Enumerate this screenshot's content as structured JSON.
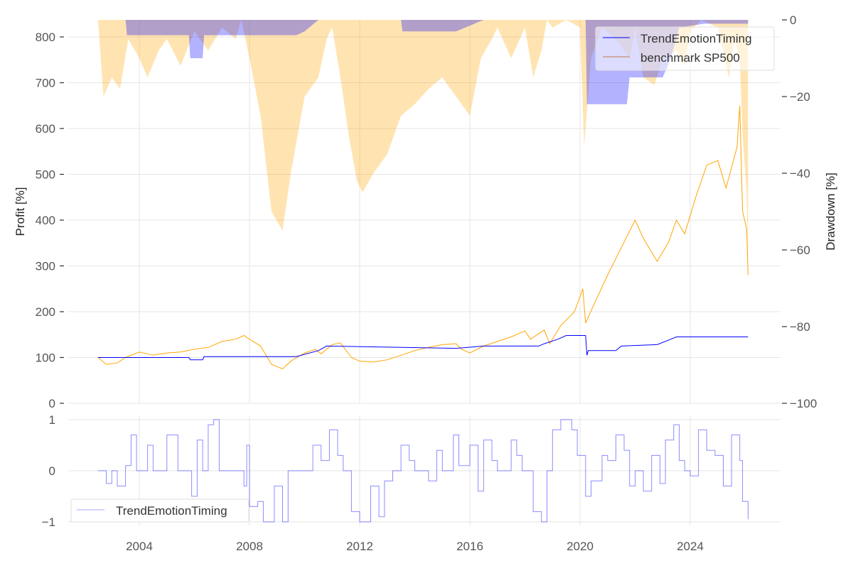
{
  "chart_data": [
    {
      "type": "line",
      "panel": "equity",
      "xlabel": "",
      "ylabel": "Profit [%]",
      "ylabel_right": "Drawdown [%]",
      "ylim": [
        0,
        835
      ],
      "ylim_right": [
        -100,
        0
      ],
      "yticks": [
        "0",
        "100",
        "200",
        "300",
        "400",
        "500",
        "600",
        "700",
        "800"
      ],
      "yticks_right": [
        "0",
        "−20",
        "−40",
        "−60",
        "−80",
        "−100"
      ],
      "grid": true,
      "legend_position": "top-right",
      "colors": {
        "strategy": "#0000ff",
        "benchmark": "#ffa500",
        "strategy_dd": "#0000ff",
        "benchmark_dd": "#ffa500"
      },
      "series": [
        {
          "name": "TrendEmotionTiming",
          "kind": "profit",
          "x": [
            2002.5,
            2005.8,
            2005.85,
            2006.3,
            2006.35,
            2009.7,
            2010.5,
            2010.8,
            2015.5,
            2016.5,
            2018.5,
            2018.7,
            2019.2,
            2019.5,
            2020.2,
            2020.25,
            2020.3,
            2021.3,
            2021.5,
            2022.8,
            2023.3,
            2023.5,
            2026.1
          ],
          "y": [
            100,
            100,
            95,
            95,
            102,
            102,
            115,
            125,
            120,
            125,
            125,
            130,
            140,
            148,
            148,
            105,
            115,
            115,
            125,
            128,
            140,
            145,
            145
          ]
        },
        {
          "name": "benchmark SP500",
          "kind": "profit",
          "x": [
            2002.5,
            2002.8,
            2003.2,
            2003.5,
            2004,
            2004.5,
            2005,
            2005.5,
            2006,
            2006.5,
            2007,
            2007.5,
            2007.8,
            2008,
            2008.4,
            2008.8,
            2009.2,
            2009.5,
            2010,
            2010.4,
            2010.6,
            2011,
            2011.3,
            2011.7,
            2012,
            2012.5,
            2013,
            2013.5,
            2014,
            2014.5,
            2015,
            2015.5,
            2015.7,
            2016,
            2016.5,
            2017,
            2017.5,
            2018,
            2018.2,
            2018.7,
            2018.9,
            2019.3,
            2019.8,
            2020.1,
            2020.2,
            2020.5,
            2021,
            2021.5,
            2022,
            2022.3,
            2022.8,
            2023.2,
            2023.5,
            2023.8,
            2024.2,
            2024.6,
            2025,
            2025.3,
            2025.7,
            2025.8,
            2025.9,
            2026.05,
            2026.1
          ],
          "y": [
            100,
            85,
            88,
            100,
            112,
            105,
            110,
            112,
            118,
            122,
            135,
            140,
            148,
            140,
            125,
            85,
            75,
            92,
            110,
            118,
            108,
            128,
            132,
            100,
            92,
            90,
            95,
            105,
            115,
            122,
            128,
            130,
            118,
            110,
            125,
            135,
            145,
            158,
            140,
            160,
            130,
            170,
            200,
            250,
            175,
            215,
            280,
            340,
            400,
            360,
            310,
            350,
            400,
            370,
            450,
            520,
            530,
            470,
            560,
            650,
            420,
            380,
            280
          ]
        },
        {
          "name": "TrendEmotionTiming drawdown",
          "kind": "drawdown",
          "x": [
            2002.5,
            2003.5,
            2003.55,
            2005.8,
            2005.85,
            2006.3,
            2006.35,
            2009.7,
            2010,
            2010.5,
            2013.5,
            2013.55,
            2015.5,
            2016.5,
            2020.2,
            2020.25,
            2021.7,
            2021.8,
            2023,
            2023.3,
            2023.6,
            2024.5,
            2026.1
          ],
          "y": [
            0,
            0,
            -4,
            -4,
            -10,
            -10,
            -4,
            -4,
            -3,
            0,
            0,
            -3,
            -3,
            0,
            0,
            -22,
            -22,
            -15,
            -15,
            -10,
            -2,
            -1,
            -1
          ]
        },
        {
          "name": "benchmark SP500 drawdown",
          "kind": "drawdown",
          "x": [
            2002.5,
            2002.7,
            2003,
            2003.3,
            2003.6,
            2004,
            2004.3,
            2004.7,
            2005,
            2005.5,
            2006,
            2006.5,
            2007,
            2007.5,
            2007.7,
            2008,
            2008.4,
            2008.8,
            2009.2,
            2009.5,
            2010,
            2010.5,
            2010.8,
            2011,
            2011.3,
            2011.6,
            2011.9,
            2012.1,
            2012.5,
            2013,
            2013.5,
            2014,
            2014.5,
            2015,
            2015.5,
            2016,
            2016.4,
            2016.8,
            2017,
            2017.5,
            2018,
            2018.3,
            2018.6,
            2018.8,
            2019,
            2019.5,
            2020,
            2020.15,
            2020.4,
            2020.8,
            2021.3,
            2021.8,
            2022,
            2022.3,
            2022.7,
            2023,
            2023.5,
            2023.8,
            2024,
            2024.4,
            2025,
            2025.4,
            2025.6,
            2025.8,
            2025.9,
            2026.05,
            2026.1
          ],
          "y": [
            0,
            -20,
            -15,
            -18,
            -5,
            -10,
            -15,
            -8,
            -5,
            -12,
            -3,
            -8,
            -2,
            -5,
            0,
            -10,
            -25,
            -50,
            -55,
            -40,
            -20,
            -15,
            -5,
            -2,
            -15,
            -30,
            -42,
            -45,
            -40,
            -35,
            -25,
            -22,
            -18,
            -15,
            -20,
            -25,
            -10,
            -5,
            -2,
            -10,
            -2,
            -15,
            -8,
            0,
            -2,
            0,
            -2,
            -33,
            -10,
            -2,
            -5,
            -10,
            -2,
            -15,
            -17,
            -10,
            -8,
            -12,
            -3,
            0,
            -2,
            -15,
            -5,
            -10,
            -30,
            -45,
            -65
          ]
        }
      ]
    },
    {
      "type": "line",
      "panel": "position",
      "ylim": [
        -1,
        1
      ],
      "yticks": [
        "−1",
        "0",
        "1"
      ],
      "xticks": [
        "2004",
        "2008",
        "2012",
        "2016",
        "2020",
        "2024"
      ],
      "legend_position": "bottom-left",
      "series": [
        {
          "name": "TrendEmotionTiming",
          "color": "#0000ff",
          "x": [
            2002.5,
            2002.8,
            2003,
            2003.2,
            2003.5,
            2003.7,
            2003.9,
            2004.3,
            2004.5,
            2005,
            2005.4,
            2005.9,
            2006.1,
            2006.3,
            2006.5,
            2006.7,
            2006.9,
            2007.5,
            2007.8,
            2007.9,
            2008,
            2008.3,
            2008.5,
            2008.9,
            2009.2,
            2009.4,
            2010,
            2010.3,
            2010.6,
            2010.9,
            2011.2,
            2011.4,
            2011.7,
            2012,
            2012.4,
            2012.7,
            2012.9,
            2013.2,
            2013.5,
            2013.8,
            2014,
            2014.5,
            2014.8,
            2015,
            2015.4,
            2015.6,
            2016,
            2016.3,
            2016.5,
            2016.8,
            2017,
            2017.5,
            2017.7,
            2017.9,
            2018.3,
            2018.6,
            2018.8,
            2019,
            2019.3,
            2019.7,
            2019.9,
            2020.2,
            2020.4,
            2020.8,
            2021,
            2021.3,
            2021.6,
            2021.8,
            2022,
            2022.3,
            2022.6,
            2022.9,
            2023.1,
            2023.4,
            2023.6,
            2023.8,
            2024,
            2024.3,
            2024.6,
            2024.9,
            2025.2,
            2025.5,
            2025.8,
            2025.9,
            2026.1
          ],
          "y": [
            0,
            -0.25,
            0,
            -0.3,
            0.1,
            0.7,
            0,
            0.5,
            0,
            0.7,
            0,
            -0.5,
            0.6,
            0,
            0.9,
            1,
            0,
            0,
            -0.3,
            0.5,
            -0.7,
            -0.6,
            -1,
            -0.3,
            -1,
            0,
            0,
            0.5,
            0.2,
            0.8,
            0.3,
            0,
            -0.8,
            -1,
            -0.3,
            -0.9,
            -0.2,
            0,
            0.5,
            0.2,
            0,
            -0.2,
            0.4,
            0,
            0.7,
            0.1,
            0.5,
            -0.4,
            0.6,
            0.2,
            0,
            0.6,
            0.3,
            0,
            -0.8,
            -1,
            0,
            0.8,
            1,
            0.8,
            0.3,
            -0.5,
            -0.2,
            0.3,
            0.2,
            0.7,
            0.4,
            -0.3,
            0,
            -0.4,
            0.3,
            -0.25,
            0.6,
            0.9,
            0.2,
            0,
            -0.1,
            0.8,
            0.4,
            0.3,
            -0.3,
            0.7,
            0.2,
            -0.6,
            -0.95
          ]
        }
      ]
    }
  ],
  "legend_top": [
    "TrendEmotionTiming",
    "benchmark SP500"
  ],
  "legend_bottom": [
    "TrendEmotionTiming"
  ]
}
